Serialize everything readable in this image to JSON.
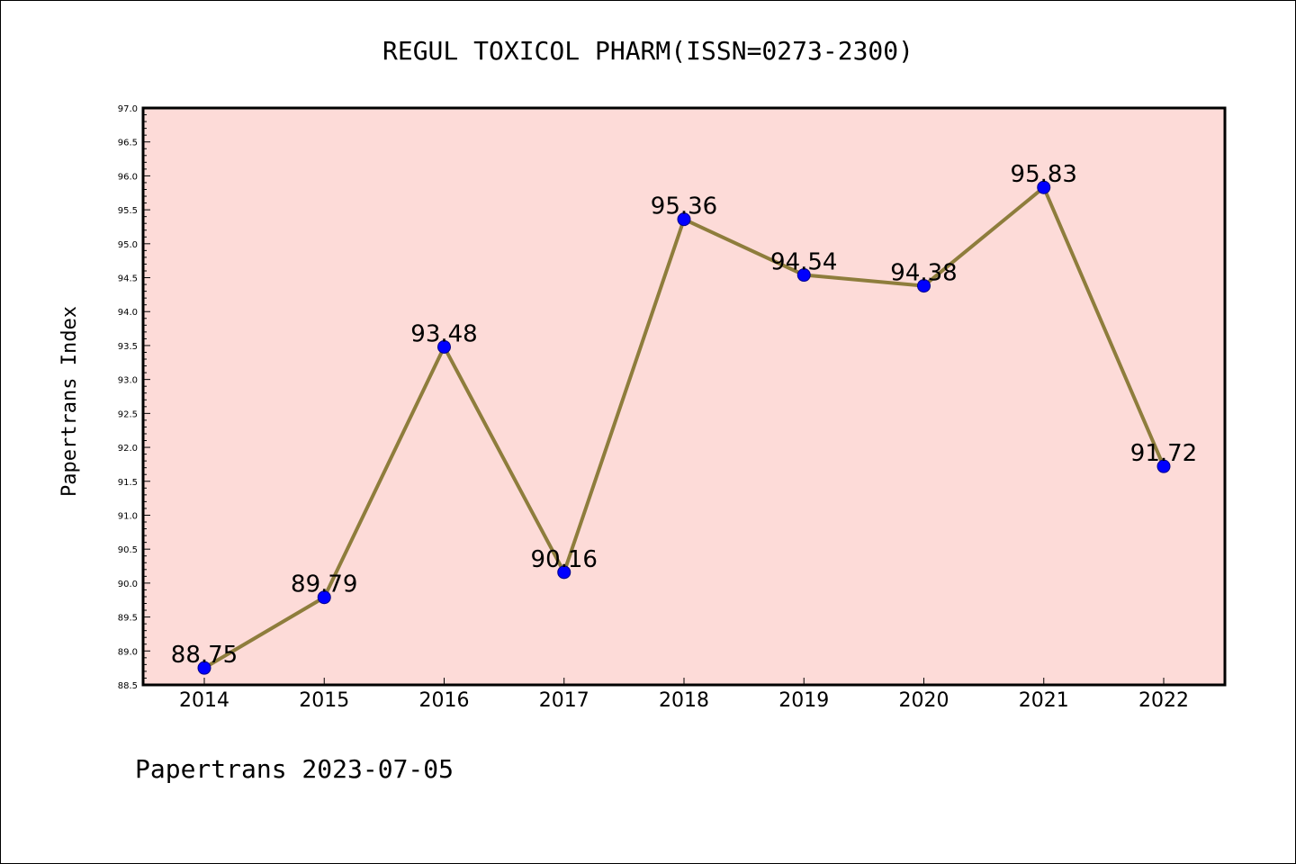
{
  "chart_data": {
    "type": "line",
    "title": "REGUL TOXICOL PHARM(ISSN=0273-2300)",
    "ylabel": "Papertrans Index",
    "xlabel": "",
    "footer": "Papertrans 2023-07-05",
    "categories": [
      "2014",
      "2015",
      "2016",
      "2017",
      "2018",
      "2019",
      "2020",
      "2021",
      "2022"
    ],
    "values": [
      88.75,
      89.79,
      93.48,
      90.16,
      95.36,
      94.54,
      94.38,
      95.83,
      91.72
    ],
    "data_labels": [
      "88.75",
      "89.79",
      "93.48",
      "90.16",
      "95.36",
      "94.54",
      "94.38",
      "95.83",
      "91.72"
    ],
    "ylim": [
      88.5,
      97.0
    ],
    "y_major_ticks": [
      "88.5",
      "89.0",
      "89.5",
      "90.0",
      "90.5",
      "91.0",
      "91.5",
      "92.0",
      "92.5",
      "93.0",
      "93.5",
      "94.0",
      "94.5",
      "95.0",
      "95.5",
      "96.0",
      "96.5",
      "97.0"
    ],
    "grid": false,
    "colors": {
      "plot_background": "#fddbd8",
      "line": "#8e7d3c",
      "marker_fill": "#0000ff",
      "marker_edge": "#00008b",
      "axis": "#000000"
    }
  }
}
